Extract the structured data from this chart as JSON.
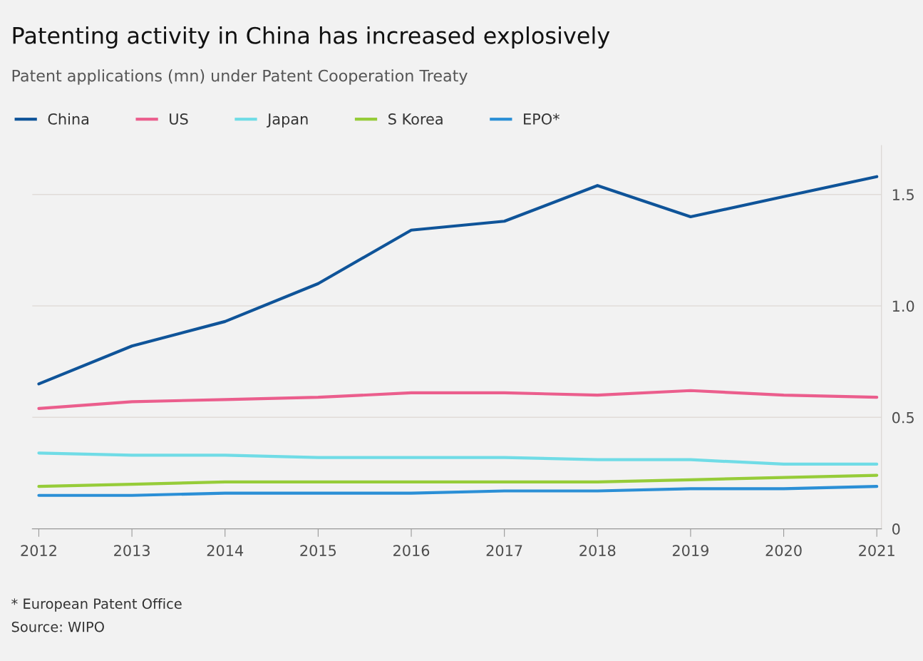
{
  "chart_data": {
    "type": "line",
    "title": "Patenting activity in China has increased explosively",
    "subtitle": "Patent applications (mn) under Patent Cooperation Treaty",
    "x": [
      2012,
      2013,
      2014,
      2015,
      2016,
      2017,
      2018,
      2019,
      2020,
      2021
    ],
    "series": [
      {
        "name": "China",
        "color": "#0f5499",
        "values": [
          0.65,
          0.82,
          0.93,
          1.1,
          1.34,
          1.38,
          1.54,
          1.4,
          1.49,
          1.58
        ]
      },
      {
        "name": "US",
        "color": "#eb5e8d",
        "values": [
          0.54,
          0.57,
          0.58,
          0.59,
          0.61,
          0.61,
          0.6,
          0.62,
          0.6,
          0.59
        ]
      },
      {
        "name": "Japan",
        "color": "#70dce6",
        "values": [
          0.34,
          0.33,
          0.33,
          0.32,
          0.32,
          0.32,
          0.31,
          0.31,
          0.29,
          0.29
        ]
      },
      {
        "name": "S Korea",
        "color": "#96cc39",
        "values": [
          0.19,
          0.2,
          0.21,
          0.21,
          0.21,
          0.21,
          0.21,
          0.22,
          0.23,
          0.24
        ]
      },
      {
        "name": "EPO*",
        "color": "#2b8fd6",
        "values": [
          0.15,
          0.15,
          0.16,
          0.16,
          0.16,
          0.17,
          0.17,
          0.18,
          0.18,
          0.19
        ]
      }
    ],
    "xlim": [
      2011.93,
      2021.05
    ],
    "xticks": [
      2012,
      2013,
      2014,
      2015,
      2016,
      2017,
      2018,
      2019,
      2020,
      2021
    ],
    "ylim": [
      0,
      1.72
    ],
    "yticks": [
      0,
      0.5,
      {
        "value": 1,
        "label": "1.0"
      },
      1.5
    ],
    "grid": "y",
    "legend": "top left",
    "marker": "none",
    "line_style": "solid",
    "annotations": [
      "* European Patent Office",
      "Source: WIPO"
    ]
  }
}
